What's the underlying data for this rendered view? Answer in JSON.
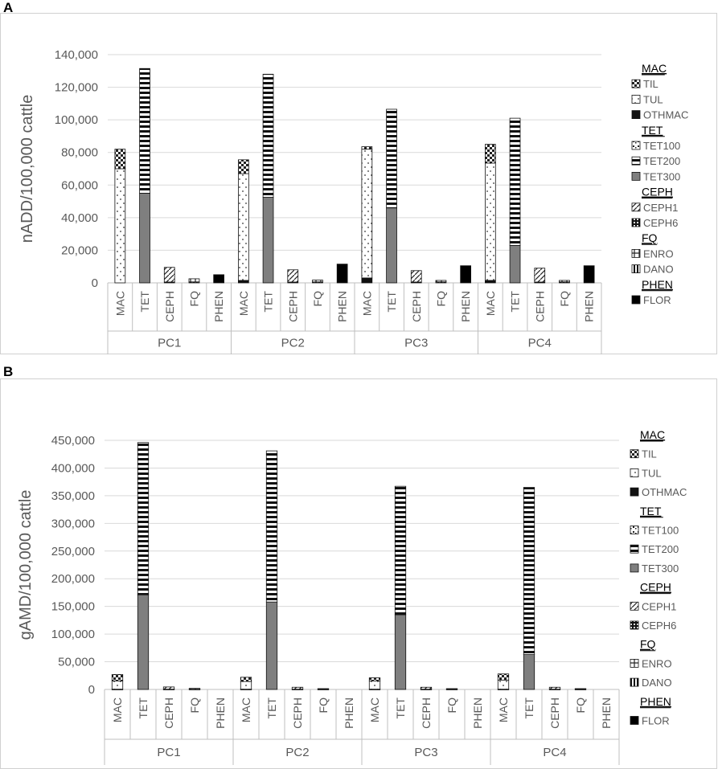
{
  "panels": [
    {
      "letter": "A"
    },
    {
      "letter": "B"
    }
  ],
  "chart_data": [
    {
      "type": "bar",
      "stacked": true,
      "ylabel": "nADD/100,000 cattle",
      "ylim": [
        0,
        140000
      ],
      "yticks": [
        "0",
        "20,000",
        "40,000",
        "60,000",
        "80,000",
        "100,000",
        "120,000",
        "140,000"
      ],
      "grid": true,
      "groups": [
        "PC1",
        "PC2",
        "PC3",
        "PC4"
      ],
      "categories": [
        "MAC",
        "TET",
        "CEPH",
        "FQ",
        "PHEN"
      ],
      "legend_position": "right",
      "legend": [
        {
          "class": "MAC",
          "items": [
            "TIL",
            "TUL",
            "OTHMAC"
          ]
        },
        {
          "class": "TET",
          "items": [
            "TET100",
            "TET200",
            "TET300"
          ]
        },
        {
          "class": "CEPH",
          "items": [
            "CEPH1",
            "CEPH6"
          ]
        },
        {
          "class": "FQ",
          "items": [
            "ENRO",
            "DANO"
          ]
        },
        {
          "class": "PHEN",
          "items": [
            "FLOR"
          ]
        }
      ],
      "series": [
        {
          "name": "OTHMAC",
          "values": [
            [
              0,
              0,
              0,
              0,
              0
            ],
            [
              1500,
              0,
              0,
              0,
              0
            ],
            [
              3000,
              0,
              0,
              0,
              0
            ],
            [
              1500,
              0,
              0,
              0,
              0
            ]
          ]
        },
        {
          "name": "TUL",
          "values": [
            [
              70000,
              0,
              0,
              0,
              0
            ],
            [
              65500,
              0,
              0,
              0,
              0
            ],
            [
              79000,
              0,
              0,
              0,
              0
            ],
            [
              72000,
              0,
              0,
              0,
              0
            ]
          ]
        },
        {
          "name": "TIL",
          "values": [
            [
              12000,
              0,
              0,
              0,
              0
            ],
            [
              8500,
              0,
              0,
              0,
              0
            ],
            [
              1500,
              0,
              0,
              0,
              0
            ],
            [
              11500,
              0,
              0,
              0,
              0
            ]
          ]
        },
        {
          "name": "TET300",
          "values": [
            [
              0,
              55000,
              0,
              0,
              0
            ],
            [
              0,
              52500,
              0,
              0,
              0
            ],
            [
              0,
              46000,
              0,
              0,
              0
            ],
            [
              0,
              23000,
              0,
              0,
              0
            ]
          ]
        },
        {
          "name": "TET200",
          "values": [
            [
              0,
              76500,
              0,
              0,
              0
            ],
            [
              0,
              75500,
              0,
              0,
              0
            ],
            [
              0,
              60500,
              0,
              0,
              0
            ],
            [
              0,
              78000,
              0,
              0,
              0
            ]
          ]
        },
        {
          "name": "TET100",
          "values": [
            [
              0,
              0,
              0,
              0,
              0
            ],
            [
              0,
              0,
              0,
              0,
              0
            ],
            [
              0,
              0,
              0,
              0,
              0
            ],
            [
              0,
              0,
              0,
              0,
              0
            ]
          ]
        },
        {
          "name": "CEPH6",
          "values": [
            [
              0,
              0,
              500,
              0,
              0
            ],
            [
              0,
              0,
              500,
              0,
              0
            ],
            [
              0,
              0,
              500,
              0,
              0
            ],
            [
              0,
              0,
              500,
              0,
              0
            ]
          ]
        },
        {
          "name": "CEPH1",
          "values": [
            [
              0,
              0,
              9000,
              0,
              0
            ],
            [
              0,
              0,
              7500,
              0,
              0
            ],
            [
              0,
              0,
              7000,
              0,
              0
            ],
            [
              0,
              0,
              8500,
              0,
              0
            ]
          ]
        },
        {
          "name": "DANO",
          "values": [
            [
              0,
              0,
              0,
              500,
              0
            ],
            [
              0,
              0,
              0,
              500,
              0
            ],
            [
              0,
              0,
              0,
              500,
              0
            ],
            [
              0,
              0,
              0,
              500,
              0
            ]
          ]
        },
        {
          "name": "ENRO",
          "values": [
            [
              0,
              0,
              0,
              2000,
              0
            ],
            [
              0,
              0,
              0,
              1200,
              0
            ],
            [
              0,
              0,
              0,
              1000,
              0
            ],
            [
              0,
              0,
              0,
              1000,
              0
            ]
          ]
        },
        {
          "name": "FLOR",
          "values": [
            [
              0,
              0,
              0,
              0,
              5000
            ],
            [
              0,
              0,
              0,
              0,
              11500
            ],
            [
              0,
              0,
              0,
              0,
              10500
            ],
            [
              0,
              0,
              0,
              0,
              10500
            ]
          ]
        }
      ]
    },
    {
      "type": "bar",
      "stacked": true,
      "ylabel": "gAMD/100,000 cattle",
      "ylim": [
        0,
        450000
      ],
      "yticks": [
        "0",
        "50,000",
        "100,000",
        "150,000",
        "200,000",
        "250,000",
        "300,000",
        "350,000",
        "400,000",
        "450,000"
      ],
      "grid": true,
      "groups": [
        "PC1",
        "PC2",
        "PC3",
        "PC4"
      ],
      "categories": [
        "MAC",
        "TET",
        "CEPH",
        "FQ",
        "PHEN"
      ],
      "legend_position": "right",
      "legend": [
        {
          "class": "MAC",
          "items": [
            "TIL",
            "TUL",
            "OTHMAC"
          ]
        },
        {
          "class": "TET",
          "items": [
            "TET100",
            "TET200",
            "TET300"
          ]
        },
        {
          "class": "CEPH",
          "items": [
            "CEPH1",
            "CEPH6"
          ]
        },
        {
          "class": "FQ",
          "items": [
            "ENRO",
            "DANO"
          ]
        },
        {
          "class": "PHEN",
          "items": [
            "FLOR"
          ]
        }
      ],
      "series": [
        {
          "name": "OTHMAC",
          "values": [
            [
              500,
              0,
              0,
              0,
              0
            ],
            [
              500,
              0,
              0,
              0,
              0
            ],
            [
              500,
              0,
              0,
              0,
              0
            ],
            [
              500,
              0,
              0,
              0,
              0
            ]
          ]
        },
        {
          "name": "TUL",
          "values": [
            [
              15000,
              0,
              0,
              0,
              0
            ],
            [
              14000,
              0,
              0,
              0,
              0
            ],
            [
              15000,
              0,
              0,
              0,
              0
            ],
            [
              16500,
              0,
              0,
              0,
              0
            ]
          ]
        },
        {
          "name": "TIL",
          "values": [
            [
              11500,
              0,
              0,
              0,
              0
            ],
            [
              7500,
              0,
              0,
              0,
              0
            ],
            [
              5500,
              0,
              0,
              0,
              0
            ],
            [
              11000,
              0,
              0,
              0,
              0
            ]
          ]
        },
        {
          "name": "TET300",
          "values": [
            [
              0,
              171000,
              0,
              0,
              0
            ],
            [
              0,
              158000,
              0,
              0,
              0
            ],
            [
              0,
              135000,
              0,
              0,
              0
            ],
            [
              0,
              63000,
              0,
              0,
              0
            ]
          ]
        },
        {
          "name": "TET200",
          "values": [
            [
              0,
              275000,
              0,
              0,
              0
            ],
            [
              0,
              273000,
              0,
              0,
              0
            ],
            [
              0,
              232000,
              0,
              0,
              0
            ],
            [
              0,
              302000,
              0,
              0,
              0
            ]
          ]
        },
        {
          "name": "TET100",
          "values": [
            [
              0,
              0,
              0,
              0,
              0
            ],
            [
              0,
              0,
              0,
              0,
              0
            ],
            [
              0,
              0,
              0,
              0,
              0
            ],
            [
              0,
              0,
              0,
              0,
              0
            ]
          ]
        },
        {
          "name": "CEPH6",
          "values": [
            [
              0,
              0,
              500,
              0,
              0
            ],
            [
              0,
              0,
              500,
              0,
              0
            ],
            [
              0,
              0,
              500,
              0,
              0
            ],
            [
              0,
              0,
              500,
              0,
              0
            ]
          ]
        },
        {
          "name": "CEPH1",
          "values": [
            [
              0,
              0,
              4000,
              0,
              0
            ],
            [
              0,
              0,
              3500,
              0,
              0
            ],
            [
              0,
              0,
              3500,
              0,
              0
            ],
            [
              0,
              0,
              3500,
              0,
              0
            ]
          ]
        },
        {
          "name": "DANO",
          "values": [
            [
              0,
              0,
              0,
              500,
              0
            ],
            [
              0,
              0,
              0,
              500,
              0
            ],
            [
              0,
              0,
              0,
              500,
              0
            ],
            [
              0,
              0,
              0,
              500,
              0
            ]
          ]
        },
        {
          "name": "ENRO",
          "values": [
            [
              0,
              0,
              0,
              1500,
              0
            ],
            [
              0,
              0,
              0,
              1000,
              0
            ],
            [
              0,
              0,
              0,
              1000,
              0
            ],
            [
              0,
              0,
              0,
              1000,
              0
            ]
          ]
        },
        {
          "name": "FLOR",
          "values": [
            [
              0,
              0,
              0,
              0,
              0
            ],
            [
              0,
              0,
              0,
              0,
              0
            ],
            [
              0,
              0,
              0,
              0,
              0
            ],
            [
              0,
              0,
              0,
              0,
              0
            ]
          ]
        }
      ]
    }
  ]
}
